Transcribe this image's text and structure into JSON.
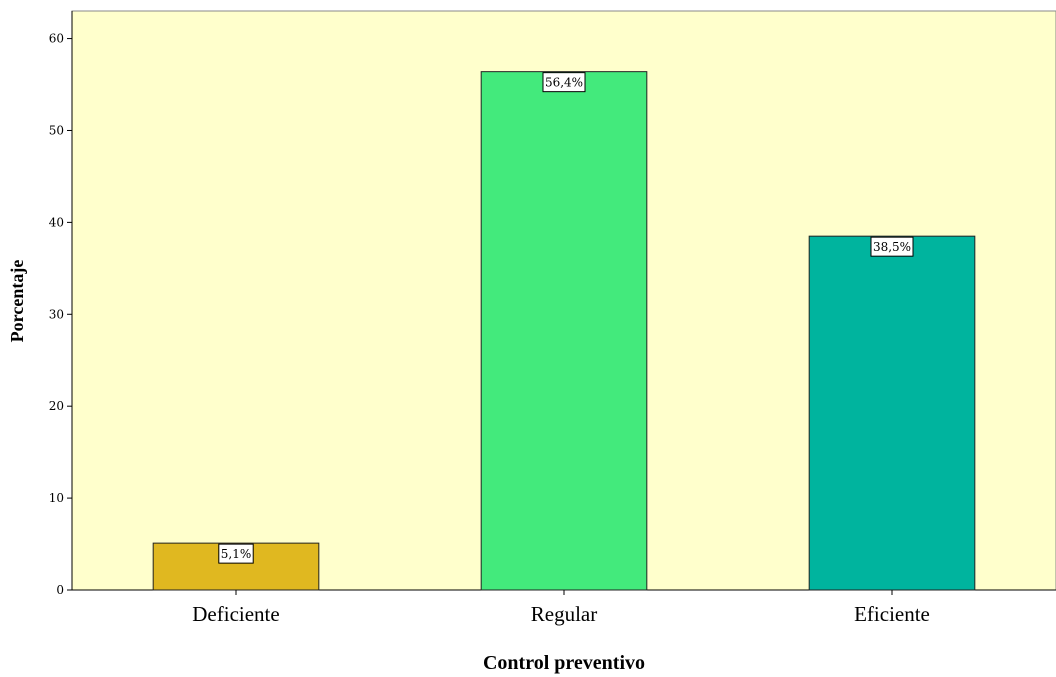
{
  "chart_data": {
    "type": "bar",
    "title": "",
    "xlabel": "Control preventivo",
    "ylabel": "Porcentaje",
    "categories": [
      "Deficiente",
      "Regular",
      "Eficiente"
    ],
    "values": [
      5.1,
      56.4,
      38.5
    ],
    "value_labels": [
      "5,1%",
      "56,4%",
      "38,5%"
    ],
    "bar_colors": [
      "#e0b820",
      "#43ea7c",
      "#00b49e"
    ],
    "plot_background": "#ffffcc",
    "ylim": [
      0,
      63
    ],
    "yticks": [
      0,
      10,
      20,
      30,
      40,
      50,
      60
    ],
    "grid": false,
    "legend": "none"
  }
}
